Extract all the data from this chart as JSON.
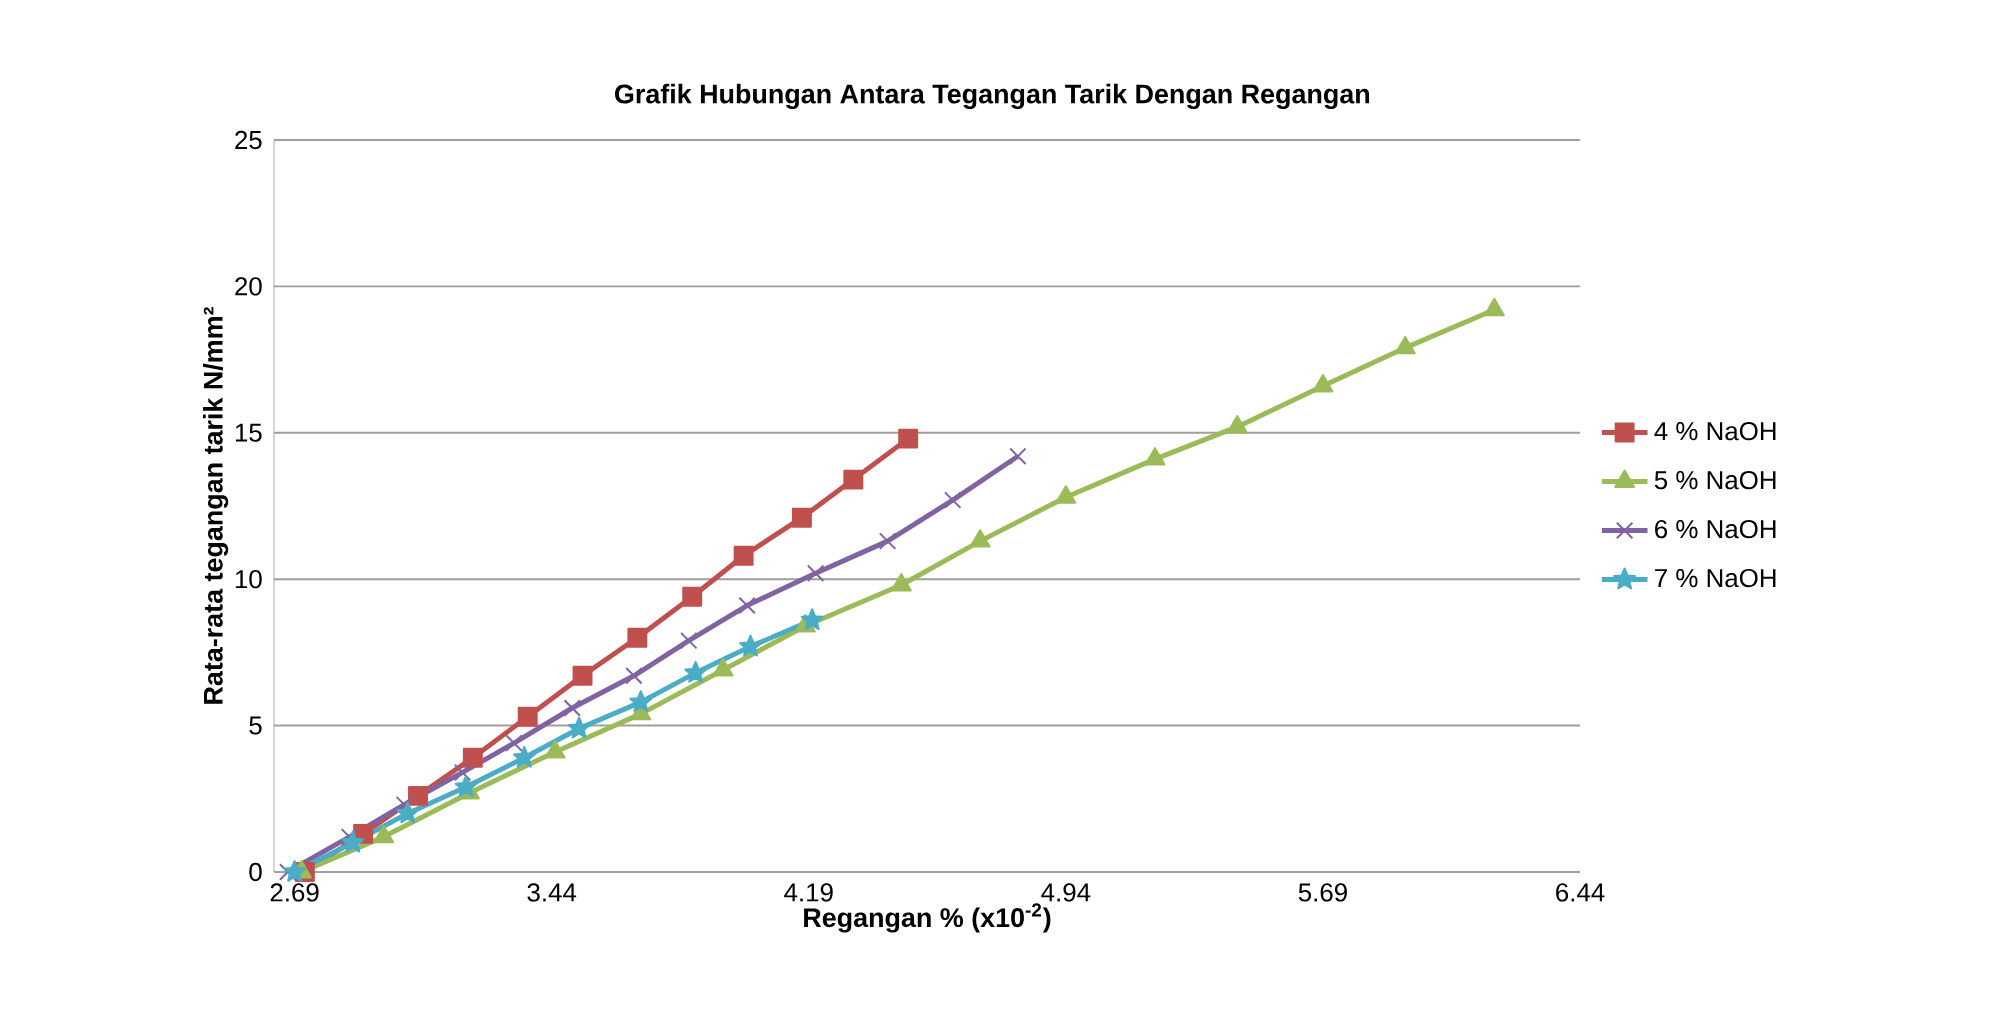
{
  "chart_data": {
    "type": "line",
    "title": "Grafik Hubungan Antara Tegangan Tarik Dengan Regangan",
    "xlabel": "Regangan % (x10$^{-2}$)",
    "ylabel": "Rata-rata tegangan tarik N/mm²",
    "xlim": [
      2.63,
      6.44
    ],
    "xticks": [
      2.69,
      3.44,
      4.19,
      4.94,
      5.69,
      6.44
    ],
    "ylim": [
      0,
      25
    ],
    "yticks": [
      0,
      5,
      10,
      15,
      20,
      25
    ],
    "grid": "y",
    "legend": "right",
    "series": [
      {
        "name": "4 % NaOH",
        "color": "#c0504d",
        "marker": "square",
        "x": [
          2.72,
          2.89,
          3.05,
          3.21,
          3.37,
          3.53,
          3.69,
          3.85,
          4.0,
          4.17,
          4.32,
          4.48
        ],
        "values": [
          0,
          1.3,
          2.6,
          3.9,
          5.3,
          6.7,
          8.0,
          9.4,
          10.8,
          12.1,
          13.4,
          14.8
        ]
      },
      {
        "name": "5 % NaOH",
        "color": "#9bbb59",
        "marker": "triangle",
        "x": [
          2.71,
          2.95,
          3.2,
          3.45,
          3.7,
          3.94,
          4.18,
          4.46,
          4.69,
          4.94,
          5.2,
          5.44,
          5.69,
          5.93,
          6.19
        ],
        "values": [
          0,
          1.2,
          2.7,
          4.1,
          5.4,
          6.9,
          8.4,
          9.8,
          11.3,
          12.8,
          14.1,
          15.2,
          16.6,
          17.9,
          19.2
        ]
      },
      {
        "name": "6 % NaOH",
        "color": "#8064a2",
        "marker": "cross",
        "x": [
          2.67,
          2.85,
          3.01,
          3.18,
          3.33,
          3.5,
          3.68,
          3.84,
          4.01,
          4.21,
          4.42,
          4.61,
          4.8
        ],
        "values": [
          0,
          1.2,
          2.3,
          3.4,
          4.4,
          5.6,
          6.7,
          7.9,
          9.1,
          10.2,
          11.3,
          12.7,
          14.2
        ]
      },
      {
        "name": "7 % NaOH",
        "color": "#4bacc6",
        "marker": "star",
        "x": [
          2.69,
          2.86,
          3.02,
          3.19,
          3.36,
          3.52,
          3.7,
          3.86,
          4.02,
          4.2
        ],
        "values": [
          0,
          1.0,
          2.0,
          2.9,
          3.9,
          4.9,
          5.8,
          6.8,
          7.7,
          8.6
        ]
      }
    ]
  }
}
